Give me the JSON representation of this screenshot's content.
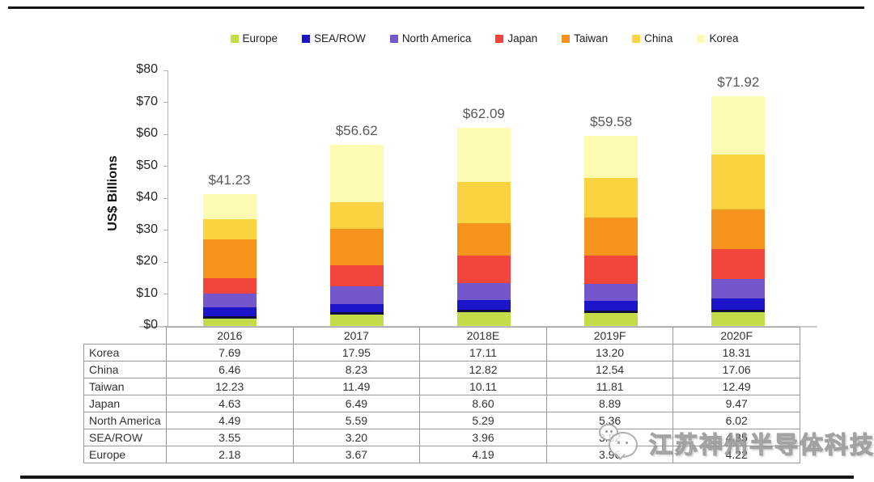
{
  "chart_data": {
    "type": "bar",
    "stacked": true,
    "title": "",
    "ylabel": "US$ Billions",
    "ylim": [
      0,
      80
    ],
    "ytick_labels": [
      "$0",
      "$10",
      "$20",
      "$30",
      "$40",
      "$50",
      "$60",
      "$70",
      "$80"
    ],
    "legend_position": "top",
    "grid": false,
    "categories": [
      "2016",
      "2017",
      "2018E",
      "2019F",
      "2020F"
    ],
    "series": [
      {
        "name": "Europe",
        "color": "#c3dc48",
        "values": [
          2.18,
          3.67,
          4.19,
          3.96,
          4.22
        ]
      },
      {
        "name": "SEA/ROW",
        "color": "#1c15c9",
        "values": [
          3.55,
          3.2,
          3.96,
          3.82,
          4.35
        ]
      },
      {
        "name": "North America",
        "color": "#7557cc",
        "values": [
          4.49,
          5.59,
          5.29,
          5.36,
          6.02
        ]
      },
      {
        "name": "Japan",
        "color": "#f2453c",
        "values": [
          4.63,
          6.49,
          8.6,
          8.89,
          9.47
        ]
      },
      {
        "name": "Taiwan",
        "color": "#f7941d",
        "values": [
          12.23,
          11.49,
          10.11,
          11.81,
          12.49
        ]
      },
      {
        "name": "China",
        "color": "#fbd23f",
        "values": [
          6.46,
          8.23,
          12.82,
          12.54,
          17.06
        ]
      },
      {
        "name": "Korea",
        "color": "#fdfbb2",
        "values": [
          7.69,
          17.95,
          17.11,
          13.2,
          18.31
        ]
      }
    ],
    "total_labels": [
      "$41.23",
      "$56.62",
      "$62.09",
      "$59.58",
      "$71.92"
    ]
  },
  "table": {
    "year_header": [
      "2016",
      "2017",
      "2018E",
      "2019F",
      "2020F"
    ],
    "rows": [
      {
        "label": "Korea",
        "values": [
          "7.69",
          "17.95",
          "17.11",
          "13.20",
          "18.31"
        ]
      },
      {
        "label": "China",
        "values": [
          "6.46",
          "8.23",
          "12.82",
          "12.54",
          "17.06"
        ]
      },
      {
        "label": "Taiwan",
        "values": [
          "12.23",
          "11.49",
          "10.11",
          "11.81",
          "12.49"
        ]
      },
      {
        "label": "Japan",
        "values": [
          "4.63",
          "6.49",
          "8.60",
          "8.89",
          "9.47"
        ]
      },
      {
        "label": "North America",
        "values": [
          "4.49",
          "5.59",
          "5.29",
          "5.36",
          "6.02"
        ]
      },
      {
        "label": "SEA/ROW",
        "values": [
          "3.55",
          "3.20",
          "3.96",
          "3.82",
          "4.35"
        ]
      },
      {
        "label": "Europe",
        "values": [
          "2.18",
          "3.67",
          "4.19",
          "3.96",
          "4.22"
        ]
      }
    ]
  },
  "watermark": {
    "icon": "wechat-logo-icon",
    "text": "江苏神州半导体科技"
  }
}
